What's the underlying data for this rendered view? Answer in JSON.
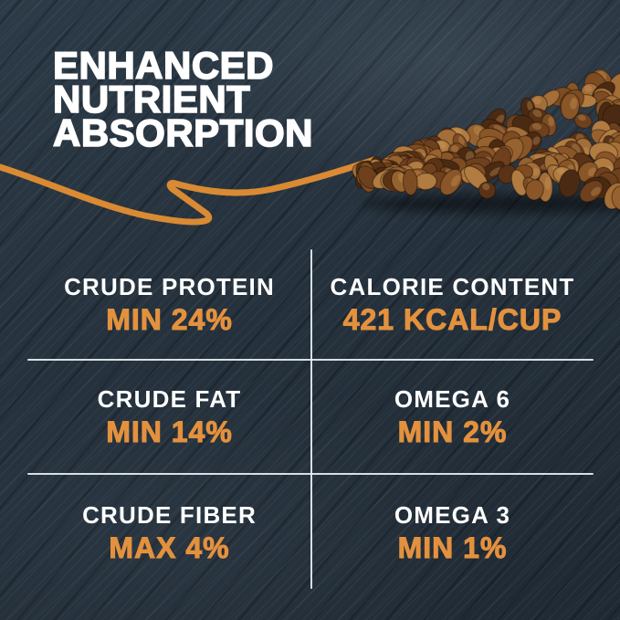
{
  "headline": {
    "lines": [
      "ENHANCED",
      "NUTRIENT",
      "ABSORPTION"
    ]
  },
  "grid": {
    "cells": [
      {
        "id": "crude-protein",
        "label": "CRUDE PROTEIN",
        "value": "MIN 24%"
      },
      {
        "id": "calorie-content",
        "label": "CALORIE CONTENT",
        "value": "421 KCAL/CUP"
      },
      {
        "id": "crude-fat",
        "label": "CRUDE FAT",
        "value": "MIN 14%"
      },
      {
        "id": "omega-6",
        "label": "OMEGA 6",
        "value": "MIN 2%"
      },
      {
        "id": "crude-fiber",
        "label": "CRUDE FIBER",
        "value": "MAX 4%"
      },
      {
        "id": "omega-3",
        "label": "OMEGA 3",
        "value": "MIN 1%"
      }
    ]
  },
  "graphics": {
    "arrow_icon": "hand-drawn-arrow",
    "kibble_image": "kibble-pile"
  },
  "colors": {
    "background": "#25313C",
    "accent_orange": "#E4913E",
    "arrow_orange": "#D98A33",
    "label_white": "#FFFFFF",
    "divider": "#E8EEF3",
    "kibble_palette": [
      "#5A3317",
      "#6E401D",
      "#7D4C22",
      "#8A5628",
      "#96622F",
      "#A36E38",
      "#B07C42",
      "#4A2A12"
    ]
  }
}
